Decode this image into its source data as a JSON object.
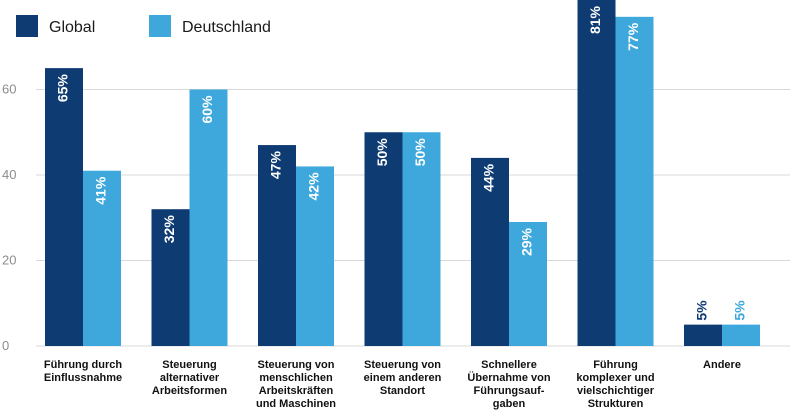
{
  "chart_data": {
    "type": "bar",
    "categories": [
      [
        "Führung durch",
        "Einflussnahme"
      ],
      [
        "Steuerung",
        "alternativer",
        "Arbeitsformen"
      ],
      [
        "Steuerung von",
        "menschlichen",
        "Arbeitskräften",
        "und Maschinen"
      ],
      [
        "Steuerung von",
        "einem anderen",
        "Standort"
      ],
      [
        "Schnellere",
        "Übernahme von",
        "Führungsauf-",
        "gaben"
      ],
      [
        "Führung",
        "komplexer und",
        "vielschichtiger",
        "Strukturen"
      ],
      [
        "Andere"
      ]
    ],
    "series": [
      {
        "name": "Global",
        "color": "#0e3b72",
        "values": [
          65,
          32,
          47,
          50,
          44,
          81,
          5
        ],
        "labels": [
          "65%",
          "32%",
          "47%",
          "50%",
          "44%",
          "81%",
          "5%"
        ]
      },
      {
        "name": "Deutschland",
        "color": "#3ea8dc",
        "values": [
          41,
          60,
          42,
          50,
          29,
          77,
          5
        ],
        "labels": [
          "41%",
          "60%",
          "42%",
          "50%",
          "29%",
          "77%",
          "5%"
        ]
      }
    ],
    "ylim": [
      0,
      80
    ],
    "yticks": [
      0,
      20,
      40,
      60
    ],
    "grid": true,
    "legend_position": "top-left",
    "tick_color": "#8c8c8c",
    "grid_color": "#d9d9d9"
  }
}
